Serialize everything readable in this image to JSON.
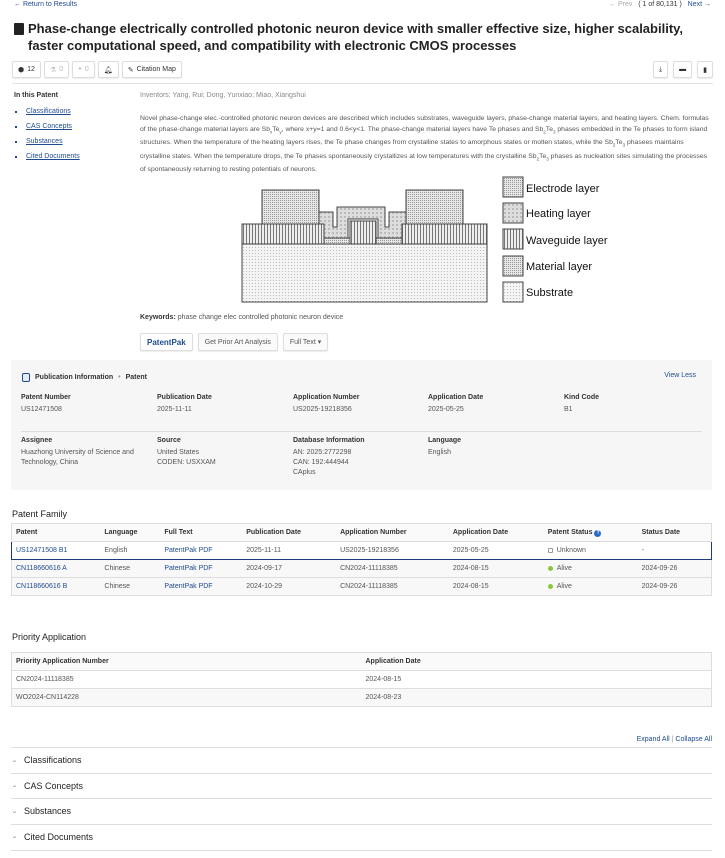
{
  "nav": {
    "back": "Return to Results",
    "prev": "Prev",
    "position": "( 1 of 80,131 )",
    "next": "Next"
  },
  "title": "Phase-change electrically controlled photonic neuron device with smaller effective size, higher scalability, faster computational speed, and compatibility with electronic CMOS processes",
  "toolbar": {
    "substances_count": "12",
    "reactions_count": "0",
    "citations_count": "0",
    "citation_map": "Citation Map"
  },
  "sidebar": {
    "heading": "In this Patent",
    "items": [
      "Classifications",
      "CAS Concepts",
      "Substances",
      "Cited Documents"
    ]
  },
  "inventors": "Inventors: Yang, Rui; Dong, Yunxiao; Miao, Xiangshui",
  "abstract": [
    {
      "t": "Novel phase-change elec.-controlled photonic neuron devices are described which includes substrates, waveguide layers, phase-change material layers, and heating layers. Chem. formulas of the phase-change material layers are Sb"
    },
    {
      "s": "x"
    },
    {
      "t": "Te"
    },
    {
      "s": "y"
    },
    {
      "t": ", where x+y=1 and 0.6<y<1. The phase-change material layers have Te phases and Sb"
    },
    {
      "s": "2"
    },
    {
      "t": "Te"
    },
    {
      "s": "3"
    },
    {
      "t": " phases embedded in the Te phases to form island structures. When the temperature of the heating layers rises, the Te phase changes from crystalline states to amorphous states or molten states, while the Sb"
    },
    {
      "s": "2"
    },
    {
      "t": "Te"
    },
    {
      "s": "3"
    },
    {
      "t": " phasees maintains crystalline states. When the temperature drops, the Te phases spontaneously crystallizes at low temperatures with the crystalline Sb"
    },
    {
      "s": "2"
    },
    {
      "t": "Te"
    },
    {
      "s": "3"
    },
    {
      "t": " phases as nucleation sites simulating the processes of spontaneously returning to resting potentials of neurons."
    }
  ],
  "figure": {
    "legend": [
      "Electrode layer",
      "Heating layer",
      "Waveguide layer",
      "Material layer",
      "Substrate"
    ]
  },
  "keywords": {
    "label": "Keywords:",
    "value": "phase change elec controlled photonic neuron device"
  },
  "actions": {
    "patentpak": "PatentPak",
    "prior_art": "Get Prior Art Analysis",
    "full_text": "Full Text"
  },
  "publication": {
    "heading": "Publication Information",
    "type": "Patent",
    "view_less": "View Less",
    "fields": [
      {
        "label": "Patent Number",
        "lines": [
          "US12471508"
        ]
      },
      {
        "label": "Publication Date",
        "lines": [
          "2025-11-11"
        ]
      },
      {
        "label": "Application Number",
        "lines": [
          "US2025-19218356"
        ]
      },
      {
        "label": "Application Date",
        "lines": [
          "2025-05-25"
        ]
      },
      {
        "label": "Kind Code",
        "lines": [
          "B1"
        ]
      },
      {
        "label": "Assignee",
        "lines": [
          "Huazhong University of Science and",
          "Technology, China"
        ]
      },
      {
        "label": "Source",
        "lines": [
          "United States",
          "CODEN: USXXAM"
        ]
      },
      {
        "label": "Database Information",
        "lines": [
          "AN: 2025:2772298",
          "CAN: 192:444944",
          "CAplus"
        ]
      },
      {
        "label": "Language",
        "lines": [
          "English"
        ]
      }
    ]
  },
  "family": {
    "heading": "Patent Family",
    "columns": [
      "Patent",
      "Language",
      "Full Text",
      "Publication Date",
      "Application Number",
      "Application Date",
      "Patent Status",
      "Status Date"
    ],
    "rows": [
      [
        "US12471508 B1",
        "English",
        "PatentPak PDF",
        "2025-11-11",
        "US2025-19218356",
        "2025-05-25",
        "Unknown",
        "-"
      ],
      [
        "CN118660616 A",
        "Chinese",
        "PatentPak PDF",
        "2024-09-17",
        "CN2024-11118385",
        "2024-08-15",
        "Alive",
        "2024-09-26"
      ],
      [
        "CN118660616 B",
        "Chinese",
        "PatentPak PDF",
        "2024-10-29",
        "CN2024-11118385",
        "2024-08-15",
        "Alive",
        "2024-09-26"
      ]
    ],
    "status_colors": {
      "Unknown": "#ffffff",
      "Alive": "#8cc63f"
    }
  },
  "priority": {
    "heading": "Priority Application",
    "columns": [
      "Priority Application Number",
      "Application Date"
    ],
    "rows": [
      [
        "CN2024-11118385",
        "2024-08-15"
      ],
      [
        "WO2024-CN114228",
        "2024-08-23"
      ]
    ]
  },
  "expand": {
    "expand_all": "Expand All",
    "sep": "|",
    "collapse_all": "Collapse All"
  },
  "sections": [
    "Classifications",
    "CAS Concepts",
    "Substances",
    "Cited Documents"
  ],
  "colors": {
    "link": "#1e4b8f",
    "selected_row": "#1e3a78",
    "panel_bg": "#f6f6f6"
  }
}
